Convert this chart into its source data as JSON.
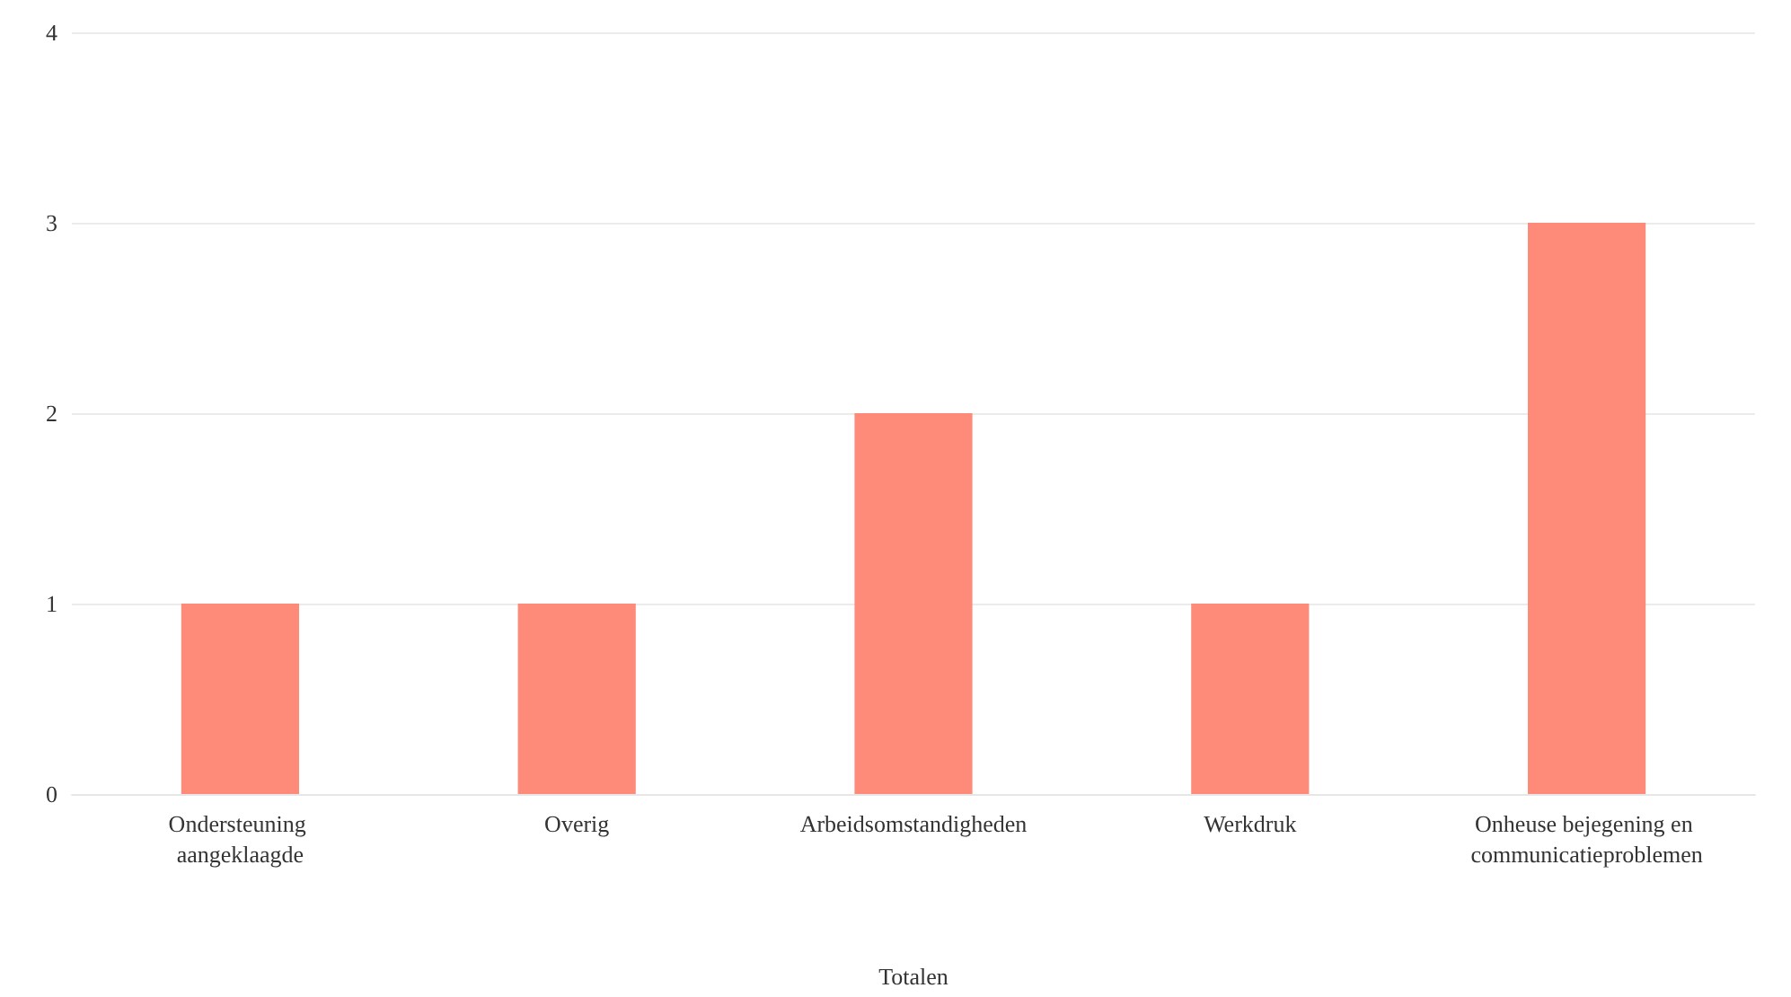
{
  "chart_data": {
    "type": "bar",
    "xlabel": "Totalen",
    "categories": [
      "Ondersteuning aangeklaagde",
      "Overig",
      "Arbeidsomstandigheden",
      "Werkdruk",
      "Onheuse bejegening en communicatieproblemen"
    ],
    "values": [
      1,
      1,
      2,
      1,
      3
    ],
    "color": "#fe8a79",
    "ylim": [
      0,
      4
    ],
    "yticks": [
      0,
      1,
      2,
      3,
      4
    ],
    "grid": "y"
  }
}
